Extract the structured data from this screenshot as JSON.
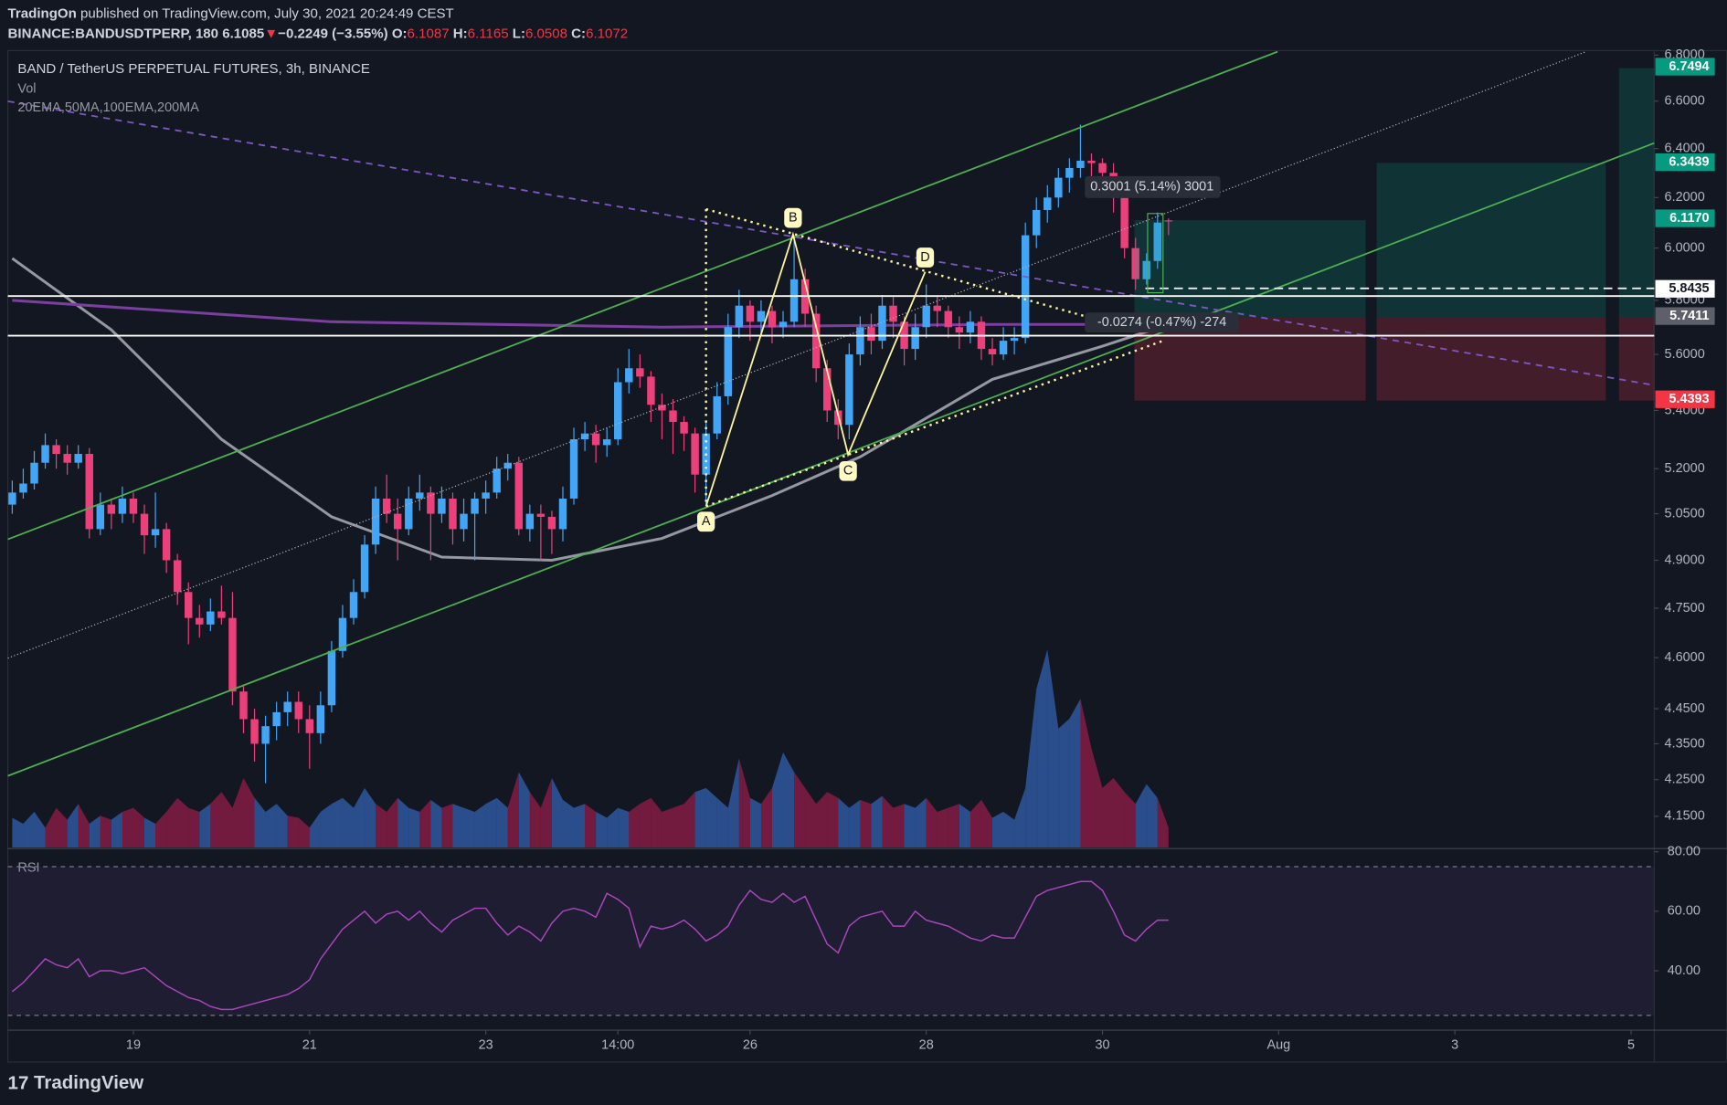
{
  "header": {
    "author": "TradingOn",
    "published": "published on TradingView.com, July 30, 2021 20:24:49 CEST",
    "symbol": "BINANCE:BANDUSDTPERP, 180",
    "last": "6.1085",
    "arrow": "▼",
    "change": "−0.2249 (−3.55%)",
    "ohlc": [
      {
        "k": "O:",
        "v": "6.1087"
      },
      {
        "k": "H:",
        "v": "6.1165"
      },
      {
        "k": "L:",
        "v": "6.0508"
      },
      {
        "k": "C:",
        "v": "6.1072"
      }
    ]
  },
  "chart_data": {
    "type": "candlestick",
    "title": "BAND / TetherUS PERPETUAL FUTURES, 3h, BINANCE",
    "volume_label": "Vol",
    "indicators_label": "20EMA,50MA,100EMA,200MA",
    "log_scale": true,
    "up_color": "#42a5f5",
    "down_color": "#ec407a",
    "xlim": [
      -0.4,
      149.1
    ],
    "xticks": [
      {
        "value": 11,
        "label": "19"
      },
      {
        "value": 27,
        "label": "21"
      },
      {
        "value": 43,
        "label": "23"
      },
      {
        "value": 55,
        "label": "14:00"
      },
      {
        "value": 67,
        "label": "26"
      },
      {
        "value": 83,
        "label": "28"
      },
      {
        "value": 99,
        "label": "30"
      },
      {
        "value": 115,
        "label": "Aug"
      },
      {
        "value": 131,
        "label": "3"
      },
      {
        "value": 147,
        "label": "5"
      }
    ],
    "ylim": [
      4.067,
      6.82
    ],
    "yticks": [
      {
        "value": 6.8,
        "label": "6.8000"
      },
      {
        "value": 6.6,
        "label": "6.6000"
      },
      {
        "value": 6.4,
        "label": "6.4000"
      },
      {
        "value": 6.2,
        "label": "6.2000"
      },
      {
        "value": 6.0,
        "label": "6.0000"
      },
      {
        "value": 5.8,
        "label": "5.8000"
      },
      {
        "value": 5.6,
        "label": "5.6000"
      },
      {
        "value": 5.4,
        "label": "5.4000"
      },
      {
        "value": 5.2,
        "label": "5.2000"
      },
      {
        "value": 5.05,
        "label": "5.0500"
      },
      {
        "value": 4.9,
        "label": "4.9000"
      },
      {
        "value": 4.75,
        "label": "4.7500"
      },
      {
        "value": 4.6,
        "label": "4.6000"
      },
      {
        "value": 4.45,
        "label": "4.4500"
      },
      {
        "value": 4.35,
        "label": "4.3500"
      },
      {
        "value": 4.25,
        "label": "4.2500"
      },
      {
        "value": 4.15,
        "label": "4.1500"
      }
    ],
    "ohlc": [
      [
        5.08,
        5.16,
        5.05,
        5.12
      ],
      [
        5.12,
        5.2,
        5.1,
        5.15
      ],
      [
        5.15,
        5.26,
        5.13,
        5.22
      ],
      [
        5.22,
        5.32,
        5.2,
        5.28
      ],
      [
        5.28,
        5.3,
        5.2,
        5.25
      ],
      [
        5.25,
        5.28,
        5.18,
        5.22
      ],
      [
        5.22,
        5.28,
        5.2,
        5.25
      ],
      [
        5.25,
        5.27,
        4.97,
        5.0
      ],
      [
        5.0,
        5.12,
        4.98,
        5.08
      ],
      [
        5.08,
        5.1,
        5.0,
        5.05
      ],
      [
        5.05,
        5.14,
        5.02,
        5.1
      ],
      [
        5.1,
        5.12,
        5.02,
        5.05
      ],
      [
        5.05,
        5.08,
        4.92,
        4.98
      ],
      [
        4.98,
        5.12,
        4.94,
        5.0
      ],
      [
        5.0,
        5.02,
        4.86,
        4.9
      ],
      [
        4.9,
        4.92,
        4.76,
        4.8
      ],
      [
        4.8,
        4.83,
        4.64,
        4.72
      ],
      [
        4.72,
        4.76,
        4.66,
        4.7
      ],
      [
        4.7,
        4.78,
        4.68,
        4.74
      ],
      [
        4.74,
        4.82,
        4.7,
        4.72
      ],
      [
        4.72,
        4.8,
        4.46,
        4.5
      ],
      [
        4.5,
        4.52,
        4.38,
        4.42
      ],
      [
        4.42,
        4.45,
        4.3,
        4.35
      ],
      [
        4.35,
        4.43,
        4.24,
        4.4
      ],
      [
        4.4,
        4.47,
        4.36,
        4.44
      ],
      [
        4.44,
        4.5,
        4.4,
        4.47
      ],
      [
        4.47,
        4.5,
        4.38,
        4.42
      ],
      [
        4.42,
        4.46,
        4.28,
        4.38
      ],
      [
        4.38,
        4.5,
        4.35,
        4.46
      ],
      [
        4.46,
        4.65,
        4.44,
        4.62
      ],
      [
        4.62,
        4.76,
        4.6,
        4.72
      ],
      [
        4.72,
        4.84,
        4.7,
        4.8
      ],
      [
        4.8,
        4.98,
        4.78,
        4.95
      ],
      [
        4.95,
        5.14,
        4.92,
        5.1
      ],
      [
        5.1,
        5.18,
        5.02,
        5.05
      ],
      [
        5.05,
        5.1,
        4.9,
        5.0
      ],
      [
        5.0,
        5.14,
        4.98,
        5.1
      ],
      [
        5.1,
        5.18,
        5.06,
        5.12
      ],
      [
        5.12,
        5.14,
        4.9,
        5.05
      ],
      [
        5.05,
        5.14,
        5.02,
        5.1
      ],
      [
        5.1,
        5.12,
        4.95,
        5.0
      ],
      [
        5.0,
        5.1,
        4.96,
        5.05
      ],
      [
        5.05,
        5.12,
        4.9,
        5.1
      ],
      [
        5.1,
        5.16,
        5.05,
        5.12
      ],
      [
        5.12,
        5.24,
        5.1,
        5.2
      ],
      [
        5.2,
        5.25,
        5.16,
        5.22
      ],
      [
        5.22,
        5.24,
        4.98,
        5.0
      ],
      [
        5.0,
        5.08,
        4.96,
        5.05
      ],
      [
        5.05,
        5.08,
        4.9,
        5.04
      ],
      [
        5.04,
        5.06,
        4.92,
        5.0
      ],
      [
        5.0,
        5.14,
        4.96,
        5.1
      ],
      [
        5.1,
        5.34,
        5.08,
        5.3
      ],
      [
        5.3,
        5.36,
        5.26,
        5.32
      ],
      [
        5.32,
        5.35,
        5.22,
        5.28
      ],
      [
        5.28,
        5.34,
        5.24,
        5.3
      ],
      [
        5.3,
        5.55,
        5.28,
        5.5
      ],
      [
        5.5,
        5.62,
        5.46,
        5.55
      ],
      [
        5.55,
        5.6,
        5.48,
        5.52
      ],
      [
        5.52,
        5.54,
        5.36,
        5.42
      ],
      [
        5.42,
        5.46,
        5.3,
        5.4
      ],
      [
        5.4,
        5.44,
        5.25,
        5.36
      ],
      [
        5.36,
        5.38,
        5.26,
        5.32
      ],
      [
        5.32,
        5.34,
        5.12,
        5.18
      ],
      [
        5.18,
        5.36,
        5.08,
        5.32
      ],
      [
        5.32,
        5.5,
        5.3,
        5.45
      ],
      [
        5.45,
        5.75,
        5.42,
        5.7
      ],
      [
        5.7,
        5.84,
        5.66,
        5.78
      ],
      [
        5.78,
        5.8,
        5.65,
        5.72
      ],
      [
        5.72,
        5.8,
        5.68,
        5.76
      ],
      [
        5.76,
        5.78,
        5.64,
        5.7
      ],
      [
        5.7,
        5.76,
        5.66,
        5.72
      ],
      [
        5.72,
        6.05,
        5.7,
        5.88
      ],
      [
        5.88,
        5.92,
        5.7,
        5.75
      ],
      [
        5.75,
        5.78,
        5.5,
        5.55
      ],
      [
        5.55,
        5.58,
        5.36,
        5.4
      ],
      [
        5.4,
        5.44,
        5.3,
        5.35
      ],
      [
        5.35,
        5.64,
        5.3,
        5.6
      ],
      [
        5.6,
        5.74,
        5.56,
        5.7
      ],
      [
        5.7,
        5.75,
        5.6,
        5.65
      ],
      [
        5.65,
        5.82,
        5.62,
        5.78
      ],
      [
        5.78,
        5.82,
        5.66,
        5.72
      ],
      [
        5.72,
        5.74,
        5.56,
        5.62
      ],
      [
        5.62,
        5.75,
        5.58,
        5.7
      ],
      [
        5.7,
        5.86,
        5.66,
        5.78
      ],
      [
        5.78,
        5.82,
        5.7,
        5.76
      ],
      [
        5.76,
        5.78,
        5.66,
        5.7
      ],
      [
        5.7,
        5.74,
        5.62,
        5.68
      ],
      [
        5.68,
        5.76,
        5.64,
        5.72
      ],
      [
        5.72,
        5.74,
        5.58,
        5.62
      ],
      [
        5.62,
        5.66,
        5.56,
        5.6
      ],
      [
        5.6,
        5.7,
        5.58,
        5.65
      ],
      [
        5.65,
        5.7,
        5.6,
        5.66
      ],
      [
        5.66,
        6.1,
        5.64,
        6.05
      ],
      [
        6.05,
        6.2,
        6.0,
        6.15
      ],
      [
        6.15,
        6.25,
        6.1,
        6.2
      ],
      [
        6.2,
        6.32,
        6.16,
        6.28
      ],
      [
        6.28,
        6.36,
        6.22,
        6.32
      ],
      [
        6.32,
        6.5,
        6.28,
        6.35
      ],
      [
        6.35,
        6.38,
        6.28,
        6.34
      ],
      [
        6.34,
        6.36,
        6.24,
        6.3
      ],
      [
        6.3,
        6.34,
        6.14,
        6.2
      ],
      [
        6.2,
        6.22,
        5.96,
        6.0
      ],
      [
        6.0,
        6.04,
        5.84,
        5.88
      ],
      [
        5.88,
        5.98,
        5.86,
        5.95
      ],
      [
        5.95,
        6.14,
        5.92,
        6.1
      ],
      [
        6.1087,
        6.1165,
        6.0508,
        6.1072
      ]
    ],
    "volume": [
      15,
      12,
      18,
      10,
      20,
      14,
      22,
      12,
      16,
      14,
      18,
      20,
      15,
      12,
      18,
      25,
      20,
      18,
      22,
      28,
      20,
      35,
      25,
      18,
      22,
      16,
      15,
      10,
      18,
      22,
      25,
      20,
      30,
      22,
      18,
      25,
      20,
      18,
      24,
      20,
      22,
      20,
      18,
      22,
      25,
      20,
      38,
      28,
      20,
      35,
      24,
      20,
      22,
      18,
      15,
      20,
      18,
      22,
      25,
      18,
      20,
      22,
      28,
      30,
      25,
      20,
      45,
      25,
      22,
      30,
      48,
      38,
      30,
      22,
      28,
      25,
      20,
      24,
      22,
      26,
      20,
      22,
      20,
      25,
      18,
      20,
      22,
      18,
      24,
      15,
      18,
      14,
      30,
      80,
      100,
      60,
      65,
      75,
      50,
      30,
      35,
      28,
      22,
      32,
      25,
      10
    ],
    "series": [
      {
        "color": "#9598a1",
        "x": [
          0,
          9,
          19,
          29,
          39,
          49,
          59,
          69,
          77,
          89,
          99,
          105
        ],
        "values": [
          5.96,
          5.69,
          5.3,
          5.04,
          4.91,
          4.9,
          4.97,
          5.11,
          5.24,
          5.51,
          5.63,
          5.71
        ]
      },
      {
        "color": "#7b3fa0",
        "x": [
          0,
          29,
          59,
          89,
          105
        ],
        "values": [
          5.8,
          5.72,
          5.7,
          5.71,
          5.71
        ]
      }
    ],
    "price_labels": [
      {
        "value": 6.7494,
        "color": "#089981"
      },
      {
        "value": 6.3439,
        "color": "#089981"
      },
      {
        "value": 6.117,
        "label": "6.1170",
        "color": "#089981"
      },
      {
        "value": 5.8435,
        "color": "#ffffff"
      },
      {
        "value": 5.7411,
        "color": "#5d606b"
      },
      {
        "value": 5.4393,
        "color": "#f23645"
      }
    ],
    "pattern_labels": [
      "A",
      "B",
      "C",
      "D"
    ],
    "measures": [
      "0.3001 (5.14%) 3001",
      "-0.0274 (-0.47%) -274"
    ]
  },
  "rsi": {
    "label": "RSI",
    "color": "#ab47bc",
    "ylim": [
      20.4,
      80.7
    ],
    "yticks": [
      {
        "value": 80,
        "label": "80.00"
      },
      {
        "value": 60,
        "label": "60.00"
      },
      {
        "value": 40,
        "label": "40.00"
      }
    ],
    "bands": [
      75,
      25
    ],
    "values": [
      33,
      36,
      40,
      44,
      42,
      41,
      44,
      38,
      40,
      40,
      39,
      40,
      41,
      38,
      35,
      33,
      31,
      30,
      28,
      27,
      27,
      28,
      29,
      30,
      31,
      32,
      34,
      37,
      44,
      49,
      54,
      57,
      60,
      56,
      59,
      60,
      57,
      60,
      56,
      53,
      57,
      59,
      61,
      61,
      56,
      52,
      55,
      53,
      50,
      56,
      60,
      61,
      60,
      58,
      66,
      64,
      61,
      48,
      55,
      54,
      55,
      57,
      54,
      50,
      52,
      55,
      62,
      67,
      64,
      63,
      66,
      63,
      65,
      57,
      49,
      46,
      55,
      58,
      59,
      60,
      55,
      55,
      60,
      57,
      56,
      55,
      53,
      51,
      50,
      52,
      51,
      51,
      58,
      65,
      67,
      68,
      69,
      70,
      70,
      67,
      60,
      52,
      50,
      54,
      57,
      57
    ]
  },
  "footer": "TradingView"
}
